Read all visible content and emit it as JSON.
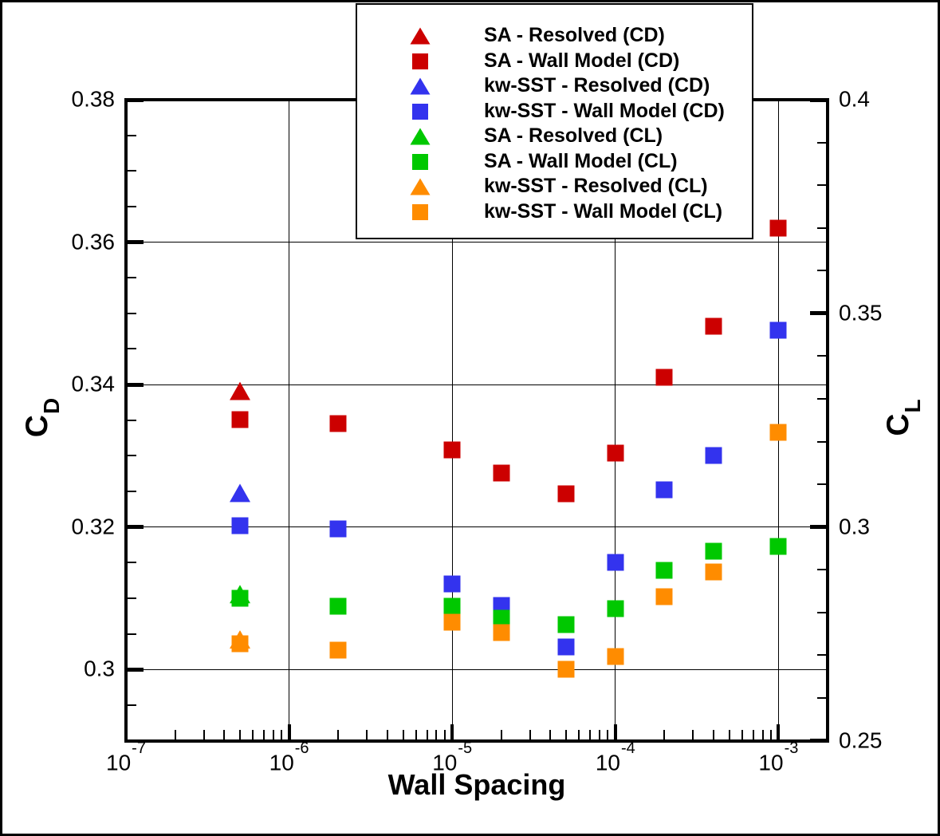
{
  "figure": {
    "background_color": "#ffffff",
    "frame_color": "#000000"
  },
  "chart_data": {
    "type": "scatter",
    "x_axis": {
      "label": "Wall Spacing",
      "scale": "log",
      "min": 1e-07,
      "max": 0.002,
      "major_ticks": [
        {
          "v": 1e-07,
          "base": "10",
          "exp": "-7"
        },
        {
          "v": 1e-06,
          "base": "10",
          "exp": "-6"
        },
        {
          "v": 1e-05,
          "base": "10",
          "exp": "-5"
        },
        {
          "v": 0.0001,
          "base": "10",
          "exp": "-4"
        },
        {
          "v": 0.001,
          "base": "10",
          "exp": "-3"
        }
      ],
      "grid_values": [
        1e-06,
        1e-05,
        0.0001,
        0.001
      ],
      "minor_tick_pattern": [
        2,
        3,
        4,
        5,
        6,
        7,
        8,
        9
      ]
    },
    "y_left": {
      "label_main": "C",
      "label_sub": "D",
      "min": 0.29,
      "max": 0.38,
      "major_ticks": [
        {
          "v": 0.38,
          "label": "0.38"
        },
        {
          "v": 0.36,
          "label": "0.36"
        },
        {
          "v": 0.34,
          "label": "0.34"
        },
        {
          "v": 0.32,
          "label": "0.32"
        },
        {
          "v": 0.3,
          "label": "0.3"
        }
      ],
      "minor_values": [
        0.295,
        0.305,
        0.31,
        0.315,
        0.325,
        0.33,
        0.335,
        0.345,
        0.35,
        0.355,
        0.365,
        0.37,
        0.375
      ],
      "grid_values": [
        0.36,
        0.34,
        0.32,
        0.3
      ]
    },
    "y_right": {
      "label_main": "C",
      "label_sub": "L",
      "min": 0.25,
      "max": 0.4,
      "major_ticks": [
        {
          "v": 0.4,
          "label": "0.4"
        },
        {
          "v": 0.35,
          "label": "0.35"
        },
        {
          "v": 0.3,
          "label": "0.3"
        },
        {
          "v": 0.25,
          "label": "0.25"
        }
      ],
      "minor_values": [
        0.26,
        0.27,
        0.28,
        0.29,
        0.31,
        0.32,
        0.33,
        0.34,
        0.36,
        0.37,
        0.38,
        0.39
      ]
    },
    "legend": {
      "position": "top-center",
      "border_color": "#000000",
      "background": "#ffffff"
    },
    "series": [
      {
        "name": "SA - Resolved (CD)",
        "color": "#cc0000",
        "marker": "triangle",
        "axis": "left",
        "points": [
          [
            5e-07,
            0.3391
          ]
        ]
      },
      {
        "name": "SA - Wall Model (CD)",
        "color": "#cc0000",
        "marker": "square",
        "axis": "left",
        "points": [
          [
            5e-07,
            0.3351
          ],
          [
            2e-06,
            0.3345
          ],
          [
            1e-05,
            0.3308
          ],
          [
            2e-05,
            0.3276
          ],
          [
            5e-05,
            0.3247
          ],
          [
            0.0001,
            0.3304
          ],
          [
            0.0002,
            0.341
          ],
          [
            0.0004,
            0.3482
          ],
          [
            0.001,
            0.362
          ]
        ]
      },
      {
        "name": "kw-SST - Resolved (CD)",
        "color": "#3333ee",
        "marker": "triangle",
        "axis": "left",
        "points": [
          [
            5e-07,
            0.3248
          ]
        ]
      },
      {
        "name": "kw-SST - Wall Model (CD)",
        "color": "#3333ee",
        "marker": "square",
        "axis": "left",
        "points": [
          [
            5e-07,
            0.3202
          ],
          [
            2e-06,
            0.3197
          ],
          [
            1e-05,
            0.312
          ],
          [
            2e-05,
            0.309
          ],
          [
            5e-05,
            0.3032
          ],
          [
            0.0001,
            0.315
          ],
          [
            0.0002,
            0.3252
          ],
          [
            0.0004,
            0.33
          ],
          [
            0.001,
            0.3476
          ]
        ]
      },
      {
        "name": "SA - Resolved (CL)",
        "color": "#00c800",
        "marker": "triangle",
        "axis": "right",
        "points": [
          [
            5e-07,
            0.2843
          ]
        ]
      },
      {
        "name": "SA - Wall Model (CL)",
        "color": "#00c800",
        "marker": "square",
        "axis": "right",
        "points": [
          [
            5e-07,
            0.2834
          ],
          [
            2e-06,
            0.2815
          ],
          [
            1e-05,
            0.2815
          ],
          [
            2e-05,
            0.2787
          ],
          [
            5e-05,
            0.2771
          ],
          [
            0.0001,
            0.2809
          ],
          [
            0.0002,
            0.2899
          ],
          [
            0.0004,
            0.2943
          ],
          [
            0.001,
            0.2954
          ]
        ]
      },
      {
        "name": "kw-SST - Resolved (CL)",
        "color": "#ff8c00",
        "marker": "triangle",
        "axis": "right",
        "points": [
          [
            5e-07,
            0.2737
          ]
        ]
      },
      {
        "name": "kw-SST - Wall Model (CL)",
        "color": "#ff8c00",
        "marker": "square",
        "axis": "right",
        "points": [
          [
            5e-07,
            0.2727
          ],
          [
            2e-06,
            0.2711
          ],
          [
            1e-05,
            0.2778
          ],
          [
            2e-05,
            0.2753
          ],
          [
            5e-05,
            0.2667
          ],
          [
            0.0001,
            0.2697
          ],
          [
            0.0002,
            0.2837
          ],
          [
            0.0004,
            0.2895
          ],
          [
            0.001,
            0.3222
          ]
        ]
      }
    ]
  }
}
